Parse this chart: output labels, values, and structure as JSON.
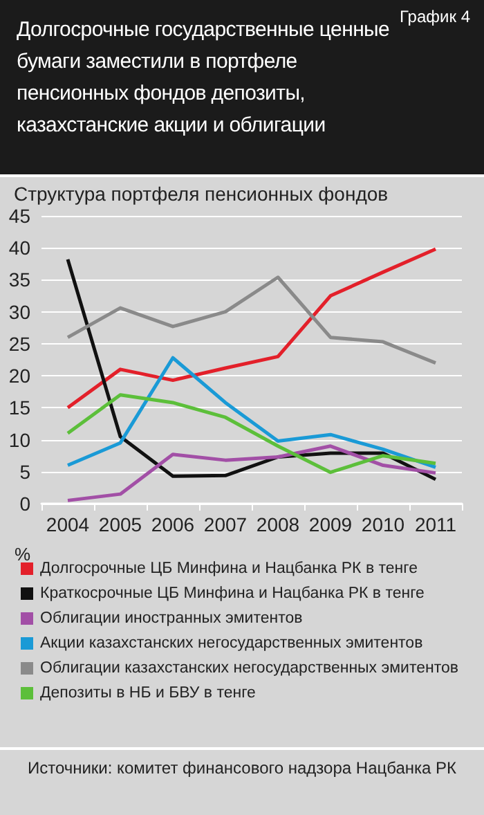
{
  "chart_data": {
    "type": "line",
    "title": "Долгосрочные государственные ценные бумаги заместили в портфеле пенсионных фондов депозиты, казахстанские акции и облигации",
    "subtitle": "Структура портфеля пенсионных фондов",
    "ylabel": "%",
    "annotations": [
      "График 4",
      "Источники: комитет финансового надзора Нацбанка РК"
    ],
    "categories": [
      "2004",
      "2005",
      "2006",
      "2007",
      "2008",
      "2009",
      "2010",
      "2011"
    ],
    "series": [
      {
        "name": "Долгосрочные ЦБ Минфина и Нацбанка РК в тенге",
        "color": "#e3202a",
        "values": [
          15,
          21,
          19.3,
          21.2,
          23,
          32.5,
          36.2,
          39.8
        ]
      },
      {
        "name": "Краткосрочные ЦБ Минфина и Нацбанка РК в тенге",
        "color": "#111111",
        "values": [
          38.2,
          10.5,
          4.3,
          4.4,
          7.3,
          7.9,
          7.9,
          3.8
        ]
      },
      {
        "name": "Облигации иностранных эмитентов",
        "color": "#a24fa6",
        "values": [
          0.5,
          1.5,
          7.7,
          6.8,
          7.3,
          9,
          6,
          4.8
        ]
      },
      {
        "name": "Акции казахстанских негосударственных эмитентов",
        "color": "#1a9ad6",
        "values": [
          6,
          9.5,
          22.8,
          15.8,
          9.8,
          10.8,
          8.5,
          5.7
        ]
      },
      {
        "name": "Облигации казахстанских негосударственных эмитентов",
        "color": "#8a8a8a",
        "values": [
          26,
          30.6,
          27.7,
          30,
          35.4,
          26,
          25.3,
          22
        ]
      },
      {
        "name": "Депозиты в НБ и БВУ в тенге",
        "color": "#5cbf3a",
        "values": [
          11,
          17,
          15.8,
          13.5,
          9,
          4.9,
          7.5,
          6.3
        ]
      }
    ],
    "ylim": [
      0,
      45
    ],
    "yticks": [
      0,
      5,
      10,
      15,
      20,
      25,
      30,
      35,
      40,
      45
    ],
    "grid": "y",
    "legend": "bottom",
    "marker": "none",
    "line_style": "solid"
  }
}
